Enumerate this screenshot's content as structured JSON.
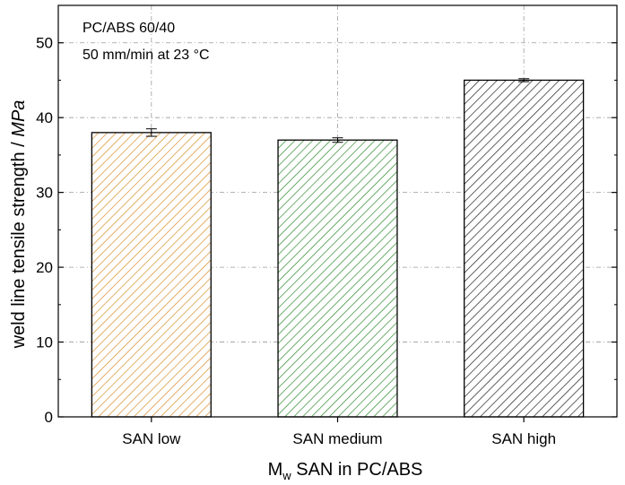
{
  "chart_data": {
    "type": "bar",
    "categories": [
      "SAN low",
      "SAN medium",
      "SAN high"
    ],
    "values": [
      38.0,
      37.0,
      45.0
    ],
    "errors": [
      0.5,
      0.3,
      0.2
    ],
    "colors": [
      "#D98C2B",
      "#2E8B2E",
      "#222222"
    ],
    "ylim": [
      0,
      55
    ],
    "yticks": [
      0,
      10,
      20,
      30,
      40,
      50
    ],
    "ylabel_prefix": "weld line tensile strength / ",
    "ylabel_unit": "MPa",
    "xlabel_symbol": "M",
    "xlabel_subscript": "w",
    "xlabel_rest": " SAN in PC/ABS",
    "annotations": [
      "PC/ABS 60/40",
      "50 mm/min at 23 °C"
    ],
    "grid": true,
    "fill": "diagonal-hatch"
  }
}
